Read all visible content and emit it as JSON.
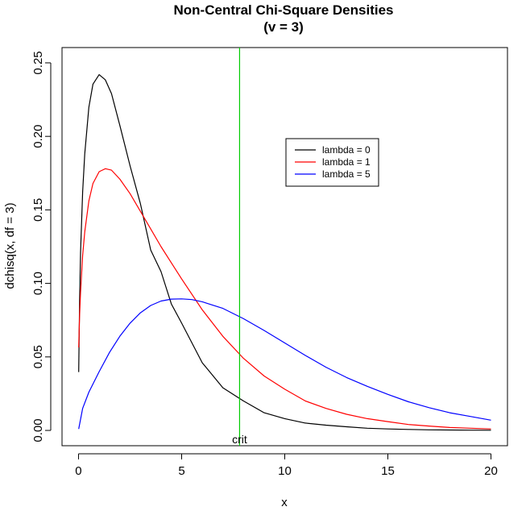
{
  "chart_data": {
    "type": "line",
    "title": "Non-Central Chi-Square Densities",
    "subtitle": "(v = 3)",
    "xlabel": "x",
    "ylabel": "dchisq(x, df = 3)",
    "xlim": [
      -0.8,
      20.8
    ],
    "ylim": [
      -0.0104,
      0.2604
    ],
    "xticks": [
      "0",
      "5",
      "10",
      "15",
      "20"
    ],
    "xtick_values": [
      0,
      5,
      10,
      15,
      20
    ],
    "yticks": [
      "0.00",
      "0.05",
      "0.10",
      "0.15",
      "0.20",
      "0.25"
    ],
    "ytick_values": [
      0,
      0.05,
      0.1,
      0.15,
      0.2,
      0.25
    ],
    "grid": false,
    "legend_position": "top-right",
    "series": [
      {
        "name": "lambda = 0",
        "color": "#000000",
        "x": [
          0.01,
          0.05,
          0.1,
          0.2,
          0.3,
          0.5,
          0.7,
          1.0,
          1.3,
          1.6,
          2.0,
          2.5,
          3.0,
          3.5,
          4.0,
          4.5,
          5.0,
          6.0,
          7.0,
          8.0,
          9.0,
          10.0,
          11.0,
          12.0,
          13.0,
          14.0,
          15.0,
          16.0,
          17.0,
          18.0,
          19.0,
          20.0
        ],
        "y": [
          0.0397,
          0.0873,
          0.121,
          0.1623,
          0.188,
          0.2197,
          0.2355,
          0.242,
          0.2384,
          0.2291,
          0.2076,
          0.1799,
          0.1542,
          0.1227,
          0.108,
          0.086,
          0.073,
          0.046,
          0.029,
          0.02,
          0.012,
          0.008,
          0.005,
          0.0036,
          0.0025,
          0.0015,
          0.001,
          0.0007,
          0.0004,
          0.0003,
          0.0002,
          0.0001
        ]
      },
      {
        "name": "lambda = 1",
        "color": "#ff0000",
        "x": [
          0.01,
          0.05,
          0.1,
          0.2,
          0.3,
          0.5,
          0.7,
          1.0,
          1.3,
          1.6,
          2.0,
          2.5,
          3.0,
          3.5,
          4.0,
          4.5,
          5.0,
          6.0,
          7.0,
          8.0,
          9.0,
          10.0,
          11.0,
          12.0,
          13.0,
          14.0,
          15.0,
          16.0,
          17.0,
          18.0,
          19.0,
          20.0
        ],
        "y": [
          0.0564,
          0.078,
          0.094,
          0.119,
          0.135,
          0.156,
          0.168,
          0.176,
          0.178,
          0.177,
          0.171,
          0.161,
          0.149,
          0.137,
          0.125,
          0.114,
          0.103,
          0.082,
          0.064,
          0.049,
          0.037,
          0.028,
          0.02,
          0.015,
          0.011,
          0.008,
          0.006,
          0.004,
          0.003,
          0.002,
          0.0015,
          0.001
        ]
      },
      {
        "name": "lambda = 5",
        "color": "#0000ff",
        "x": [
          0.01,
          0.2,
          0.5,
          1.0,
          1.5,
          2.0,
          2.5,
          3.0,
          3.5,
          4.0,
          4.5,
          5.0,
          5.5,
          6.0,
          7.0,
          8.0,
          9.0,
          10.0,
          11.0,
          12.0,
          13.0,
          14.0,
          15.0,
          16.0,
          17.0,
          18.0,
          19.0,
          20.0
        ],
        "y": [
          0.001,
          0.015,
          0.026,
          0.04,
          0.053,
          0.064,
          0.073,
          0.08,
          0.085,
          0.088,
          0.0893,
          0.0895,
          0.089,
          0.0875,
          0.083,
          0.076,
          0.068,
          0.0595,
          0.051,
          0.043,
          0.036,
          0.03,
          0.0245,
          0.0195,
          0.0155,
          0.012,
          0.0095,
          0.007
        ]
      }
    ],
    "crit_line": {
      "x": 7.81,
      "color": "#00cc00",
      "label": "crit"
    }
  }
}
